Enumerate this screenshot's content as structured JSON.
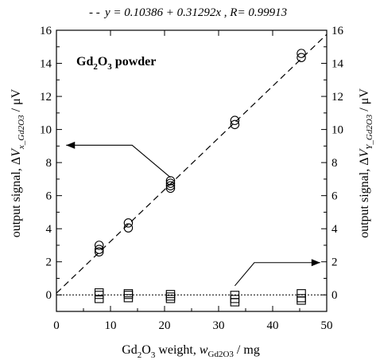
{
  "chart_data": {
    "type": "scatter",
    "legend": {
      "line_style": "- -",
      "equation": "y = 0.10386 + 0.31292x , R= 0.99913"
    },
    "annotation": {
      "base": "Gd",
      "sub": "2",
      "mid": "O",
      "sub2": "3",
      "tail": " powder"
    },
    "xlabel": {
      "prefix": "Gd",
      "sub1": "2",
      "mid": "O",
      "sub2": "3",
      "text": " weight, ",
      "sym": "w",
      "symsub": "Gd2O3",
      "unit": " / mg"
    },
    "ylabel_left": {
      "prefix": "output signal, Δ",
      "sym": "V",
      "symsub": "x_Gd2O3",
      "unit": " / μV"
    },
    "ylabel_right": {
      "prefix": "output signal, Δ",
      "sym": "V",
      "symsub": "Y_Gd2O3",
      "unit": " / μV"
    },
    "xlim": [
      0,
      50
    ],
    "ylim": [
      -1,
      16
    ],
    "xticks": [
      0,
      10,
      20,
      30,
      40,
      50
    ],
    "yticks": [
      0,
      2,
      4,
      6,
      8,
      10,
      12,
      14,
      16
    ],
    "fit_line": {
      "intercept": 0.10386,
      "slope": 0.31292,
      "x_range": [
        0,
        50
      ]
    },
    "zero_line": {
      "y": 0
    },
    "series": [
      {
        "marker": "circle",
        "axis": "left",
        "points": [
          [
            7.9,
            2.6
          ],
          [
            7.9,
            2.75
          ],
          [
            7.9,
            3.0
          ],
          [
            13.3,
            4.05
          ],
          [
            13.3,
            4.35
          ],
          [
            21.1,
            6.45
          ],
          [
            21.1,
            6.6
          ],
          [
            21.1,
            6.75
          ],
          [
            21.1,
            6.9
          ],
          [
            33.0,
            10.3
          ],
          [
            33.0,
            10.55
          ],
          [
            45.3,
            14.35
          ],
          [
            45.3,
            14.6
          ]
        ]
      },
      {
        "marker": "square",
        "axis": "right",
        "points": [
          [
            7.9,
            -0.25
          ],
          [
            7.9,
            0.0
          ],
          [
            7.9,
            0.15
          ],
          [
            13.3,
            -0.2
          ],
          [
            13.3,
            0.0
          ],
          [
            13.3,
            0.1
          ],
          [
            21.1,
            -0.25
          ],
          [
            21.1,
            -0.1
          ],
          [
            21.1,
            0.05
          ],
          [
            33.0,
            -0.45
          ],
          [
            33.0,
            -0.25
          ],
          [
            33.0,
            0.0
          ],
          [
            45.3,
            -0.35
          ],
          [
            45.3,
            -0.2
          ],
          [
            45.3,
            0.1
          ]
        ]
      }
    ],
    "arrows": [
      {
        "target_axis": "left",
        "path": [
          [
            21.1,
            7.1
          ],
          [
            14.0,
            9.05
          ],
          [
            1.8,
            9.05
          ]
        ]
      },
      {
        "target_axis": "right",
        "path": [
          [
            33.0,
            0.55
          ],
          [
            36.6,
            1.95
          ],
          [
            48.8,
            1.95
          ]
        ]
      }
    ]
  }
}
